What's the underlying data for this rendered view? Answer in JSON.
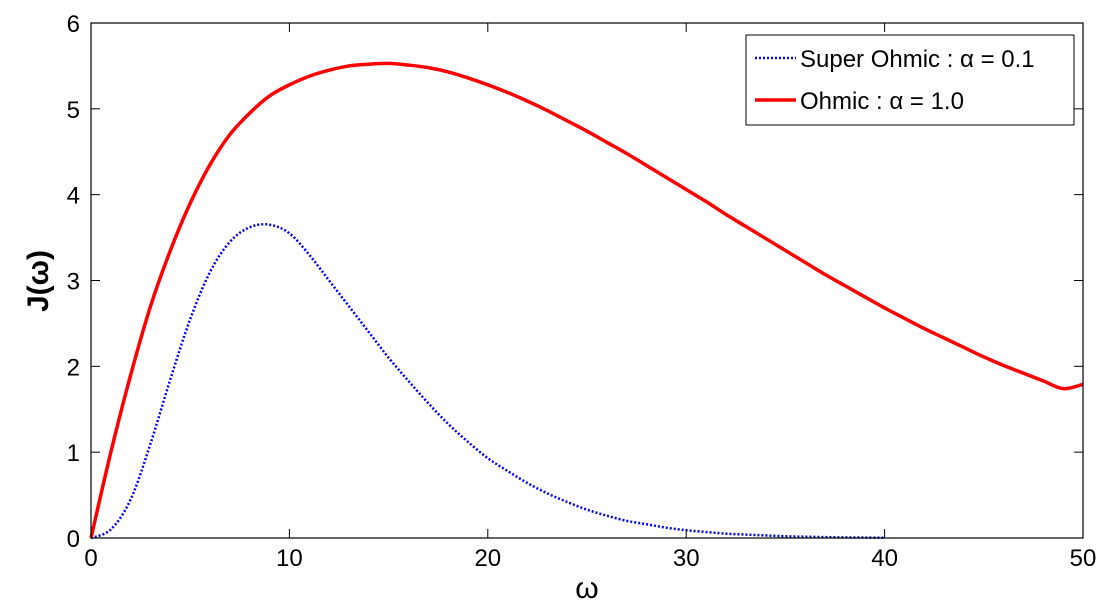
{
  "chart_data": {
    "type": "line",
    "title": "",
    "xlabel": "ω",
    "ylabel": "J(ω)",
    "xlim": [
      0,
      50
    ],
    "ylim": [
      0,
      6
    ],
    "xticks": [
      "0",
      "10",
      "20",
      "30",
      "40",
      "50"
    ],
    "yticks": [
      "0",
      "1",
      "2",
      "3",
      "4",
      "5",
      "6"
    ],
    "grid": false,
    "legend_position": "top-right",
    "series": [
      {
        "name": "Super Ohmic : α = 0.1",
        "style": "dotted",
        "color": "#0000ff",
        "x": [
          0,
          1,
          2,
          3,
          4,
          5,
          6,
          7,
          8,
          9,
          10,
          11,
          12,
          13,
          14,
          15,
          16,
          17,
          18,
          19,
          20,
          21,
          22,
          23,
          24,
          25,
          26,
          27,
          28,
          29,
          30,
          31,
          32,
          33,
          34,
          35,
          36,
          37,
          38,
          39,
          40
        ],
        "y": [
          0,
          0.1,
          0.45,
          1.1,
          1.85,
          2.55,
          3.1,
          3.45,
          3.62,
          3.65,
          3.55,
          3.3,
          3.0,
          2.7,
          2.4,
          2.1,
          1.83,
          1.57,
          1.33,
          1.12,
          0.93,
          0.78,
          0.64,
          0.52,
          0.42,
          0.33,
          0.26,
          0.2,
          0.16,
          0.12,
          0.09,
          0.07,
          0.05,
          0.04,
          0.03,
          0.02,
          0.015,
          0.01,
          0.007,
          0.005,
          0.003
        ]
      },
      {
        "name": "Ohmic : α = 1.0",
        "style": "solid",
        "color": "#ff0000",
        "x": [
          0,
          1,
          2,
          3,
          4,
          5,
          6,
          7,
          8,
          9,
          10,
          11,
          12,
          13,
          14,
          15,
          16,
          17,
          18,
          19,
          20,
          21,
          22,
          23,
          24,
          25,
          26,
          27,
          28,
          29,
          30,
          31,
          32,
          33,
          34,
          35,
          36,
          37,
          38,
          39,
          40,
          41,
          42,
          43,
          44,
          45,
          46,
          47,
          48,
          49,
          50
        ],
        "y": [
          0,
          1.0,
          1.9,
          2.7,
          3.35,
          3.9,
          4.35,
          4.7,
          4.95,
          5.15,
          5.28,
          5.38,
          5.45,
          5.5,
          5.52,
          5.53,
          5.51,
          5.48,
          5.43,
          5.36,
          5.28,
          5.19,
          5.09,
          4.98,
          4.86,
          4.74,
          4.61,
          4.48,
          4.34,
          4.2,
          4.06,
          3.92,
          3.77,
          3.63,
          3.49,
          3.35,
          3.21,
          3.07,
          2.94,
          2.81,
          2.68,
          2.56,
          2.44,
          2.33,
          2.22,
          2.11,
          2.01,
          1.92,
          1.83,
          1.74,
          1.79
        ]
      }
    ]
  }
}
